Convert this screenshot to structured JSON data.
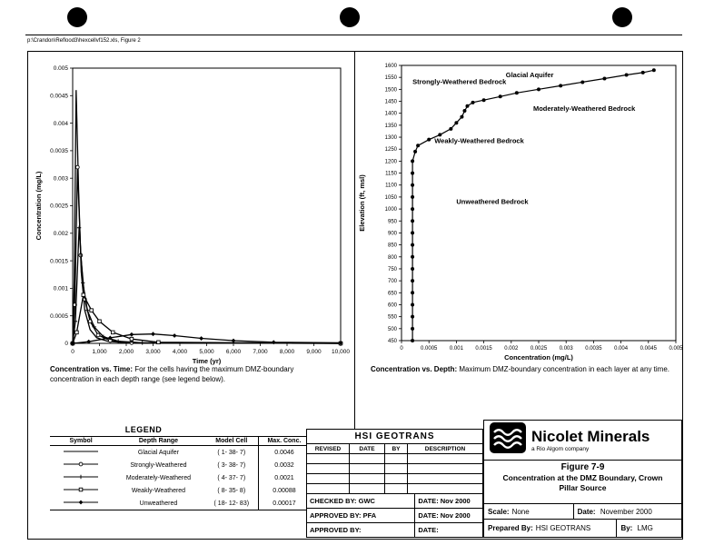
{
  "page": {
    "header_path": "p:\\Crandon\\Reflood3\\hexcellvf152.xls, Figure 2"
  },
  "captions": {
    "time_lead": "Concentration vs. Time:",
    "time_body": " For the cells having the maximum DMZ-boundary concentration in each depth range (see legend below).",
    "depth_lead": "Concentration vs. Depth:",
    "depth_body": " Maximum DMZ-boundary concentration in each layer at any time."
  },
  "legend": {
    "title": "LEGEND",
    "columns": [
      "Symbol",
      "Depth Range",
      "Model Cell",
      "Max. Conc."
    ],
    "rows": [
      {
        "symbol": "line-plain",
        "depth_range": "Glacial Aquifer",
        "model_cell": "( 1- 38-  7)",
        "max_conc": "0.0046"
      },
      {
        "symbol": "line-circle",
        "depth_range": "Strongly-Weathered",
        "model_cell": "( 3- 38-  7)",
        "max_conc": "0.0032"
      },
      {
        "symbol": "line-plus",
        "depth_range": "Moderately-Weathered",
        "model_cell": "( 4- 37-  7)",
        "max_conc": "0.0021"
      },
      {
        "symbol": "line-square",
        "depth_range": "Weakly-Weathered",
        "model_cell": "( 8- 35-  8)",
        "max_conc": "0.00088"
      },
      {
        "symbol": "line-diamond",
        "depth_range": "Unweathered",
        "model_cell": "( 18- 12- 83)",
        "max_conc": "0.00017"
      }
    ]
  },
  "title_block": {
    "company": "HSI GEOTRANS",
    "revision_columns": [
      "REVISED",
      "DATE",
      "BY",
      "DESCRIPTION"
    ],
    "empty_revision_rows": 4,
    "signoff_rows": [
      {
        "label": "CHECKED BY: GWC",
        "date": "DATE:  Nov 2000"
      },
      {
        "label": "APPROVED BY:  PFA",
        "date": "DATE:  Nov 2000"
      },
      {
        "label": "APPROVED BY:",
        "date": "DATE:"
      }
    ],
    "brand": {
      "name": "Nicolet Minerals",
      "tagline": "a Rio Algom company"
    },
    "figure_no": "Figure 7-9",
    "figure_title": "Concentration at the DMZ Boundary, Crown Pillar Source",
    "scale": {
      "label": "Scale:",
      "value": "None"
    },
    "date": {
      "label": "Date:",
      "value": "November 2000"
    },
    "prepared": {
      "label": "Prepared By:",
      "value": "HSI GEOTRANS"
    },
    "by": {
      "label": "By:",
      "value": "LMG"
    }
  },
  "chart_data": [
    {
      "type": "line",
      "title": "",
      "xlabel": "Time (yr)",
      "ylabel": "Concentration (mg/L)",
      "xlim": [
        0,
        10000
      ],
      "ylim": [
        0,
        0.005
      ],
      "grid": false,
      "legend_position": "separate-table-below",
      "x_ticks": [
        0,
        1000,
        2000,
        3000,
        4000,
        5000,
        6000,
        7000,
        8000,
        9000,
        10000
      ],
      "x_tick_labels": [
        "0",
        "1,000",
        "2,000",
        "3,000",
        "4,000",
        "5,000",
        "6,000",
        "7,000",
        "8,000",
        "9,000",
        "10,000"
      ],
      "y_ticks": [
        0,
        0.0005,
        0.001,
        0.0015,
        0.002,
        0.0025,
        0.003,
        0.0035,
        0.004,
        0.0045,
        0.005
      ],
      "y_tick_labels": [
        "0",
        "0.0005",
        "0.001",
        "0.0015",
        "0.002",
        "0.0025",
        "0.003",
        "0.0035",
        "0.004",
        "0.0045",
        "0.005"
      ],
      "series": [
        {
          "name": "Glacial Aquifer",
          "marker": "none",
          "x": [
            0,
            60,
            130,
            220,
            320,
            450,
            650,
            900,
            1300,
            2000,
            10000
          ],
          "y": [
            0,
            0.0012,
            0.0046,
            0.0028,
            0.0013,
            0.0006,
            0.00025,
            0.0001,
            4e-05,
            1e-05,
            0
          ]
        },
        {
          "name": "Strongly-Weathered",
          "marker": "circle",
          "x": [
            0,
            80,
            180,
            300,
            450,
            650,
            950,
            1400,
            2200,
            10000
          ],
          "y": [
            0,
            0.0007,
            0.0032,
            0.0016,
            0.0008,
            0.0004,
            0.00015,
            5e-05,
            1e-05,
            0
          ]
        },
        {
          "name": "Moderately-Weathered",
          "marker": "plus",
          "x": [
            0,
            100,
            240,
            380,
            550,
            800,
            1150,
            1700,
            2600,
            10000
          ],
          "y": [
            0,
            0.0004,
            0.0021,
            0.0011,
            0.0006,
            0.0003,
            0.00012,
            4e-05,
            1e-05,
            0
          ]
        },
        {
          "name": "Weakly-Weathered",
          "marker": "square",
          "x": [
            0,
            150,
            400,
            700,
            1000,
            1500,
            2200,
            3200,
            10000
          ],
          "y": [
            0,
            0.0002,
            0.00088,
            0.0006,
            0.0004,
            0.0002,
            8e-05,
            2e-05,
            0
          ]
        },
        {
          "name": "Unweathered",
          "marker": "diamond",
          "x": [
            0,
            600,
            1400,
            2200,
            3000,
            3800,
            4800,
            6000,
            7500,
            10000
          ],
          "y": [
            0,
            3e-05,
            0.0001,
            0.00016,
            0.00017,
            0.00014,
            9e-05,
            5e-05,
            2e-05,
            1e-05
          ]
        }
      ]
    },
    {
      "type": "line",
      "title": "",
      "xlabel": "Concentration (mg/L)",
      "ylabel": "Elevation (ft, msl)",
      "xlim": [
        0,
        0.005
      ],
      "ylim": [
        450,
        1600
      ],
      "grid": false,
      "marker": "circle-filled",
      "x_ticks": [
        0,
        0.0005,
        0.001,
        0.0015,
        0.002,
        0.0025,
        0.003,
        0.0035,
        0.004,
        0.0045,
        0.005
      ],
      "x_tick_labels": [
        "0",
        "0.0005",
        "0.001",
        "0.0015",
        "0.002",
        "0.0025",
        "0.003",
        "0.0035",
        "0.004",
        "0.0045",
        "0.005"
      ],
      "y_ticks": [
        1600,
        1550,
        1500,
        1450,
        1400,
        1350,
        1300,
        1250,
        1200,
        1150,
        1100,
        1050,
        1000,
        950,
        900,
        850,
        800,
        750,
        700,
        650,
        600,
        550,
        500,
        450
      ],
      "series": [
        {
          "name": "Maximum DMZ-boundary concentration",
          "points": [
            [
              0.0002,
              450
            ],
            [
              0.0002,
              500
            ],
            [
              0.0002,
              550
            ],
            [
              0.0002,
              600
            ],
            [
              0.0002,
              650
            ],
            [
              0.0002,
              700
            ],
            [
              0.0002,
              750
            ],
            [
              0.0002,
              800
            ],
            [
              0.0002,
              850
            ],
            [
              0.0002,
              900
            ],
            [
              0.0002,
              950
            ],
            [
              0.0002,
              1000
            ],
            [
              0.0002,
              1050
            ],
            [
              0.0002,
              1100
            ],
            [
              0.0002,
              1150
            ],
            [
              0.0002,
              1200
            ],
            [
              0.00025,
              1240
            ],
            [
              0.0003,
              1265
            ],
            [
              0.0005,
              1290
            ],
            [
              0.0007,
              1310
            ],
            [
              0.0009,
              1335
            ],
            [
              0.001,
              1360
            ],
            [
              0.0011,
              1385
            ],
            [
              0.00115,
              1410
            ],
            [
              0.0012,
              1430
            ],
            [
              0.0013,
              1445
            ],
            [
              0.0015,
              1455
            ],
            [
              0.0018,
              1470
            ],
            [
              0.0021,
              1485
            ],
            [
              0.0025,
              1500
            ],
            [
              0.0029,
              1515
            ],
            [
              0.0033,
              1530
            ],
            [
              0.0037,
              1545
            ],
            [
              0.0041,
              1560
            ],
            [
              0.0044,
              1570
            ],
            [
              0.0046,
              1580
            ]
          ]
        }
      ],
      "annotations": [
        {
          "text": "Glacial Aquifer",
          "x": 0.0019,
          "y": 1560
        },
        {
          "text": "Strongly-Weathered Bedrock",
          "x": 0.0002,
          "y": 1531
        },
        {
          "text": "Moderately-Weathered Bedrock",
          "x": 0.0024,
          "y": 1420
        },
        {
          "text": "Weakly-Weathered Bedrock",
          "x": 0.0006,
          "y": 1285
        },
        {
          "text": "Unweathered Bedrock",
          "x": 0.001,
          "y": 1030
        }
      ]
    }
  ]
}
